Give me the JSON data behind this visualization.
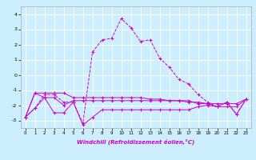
{
  "xlabel": "Windchill (Refroidissement éolien,°C)",
  "background_color": "#cceeff",
  "grid_color": "#ffffff",
  "line_color": "#cc00cc",
  "xlim": [
    -0.5,
    23.5
  ],
  "ylim": [
    -3.5,
    4.5
  ],
  "xticks": [
    0,
    1,
    2,
    3,
    4,
    5,
    6,
    7,
    8,
    9,
    10,
    11,
    12,
    13,
    14,
    15,
    16,
    17,
    18,
    19,
    20,
    21,
    22,
    23
  ],
  "yticks": [
    -3,
    -2,
    -1,
    0,
    1,
    2,
    3,
    4
  ],
  "lines": [
    {
      "x": [
        0,
        1,
        2,
        3,
        4,
        5,
        6,
        7,
        8,
        9,
        10,
        11,
        12,
        13,
        14,
        15,
        16,
        17,
        18,
        19,
        20,
        21,
        22,
        23
      ],
      "y": [
        -2.8,
        -2.2,
        -1.3,
        -1.3,
        -1.8,
        -1.8,
        -3.2,
        1.5,
        2.3,
        2.4,
        3.7,
        3.1,
        2.2,
        2.3,
        1.1,
        0.5,
        -0.3,
        -0.6,
        -1.3,
        -1.8,
        -2.1,
        -1.8,
        -2.6,
        -1.6
      ],
      "style": "--",
      "marker": "+"
    },
    {
      "x": [
        0,
        1,
        2,
        3,
        4,
        5,
        6,
        7,
        8,
        9,
        10,
        11,
        12,
        13,
        14,
        15,
        16,
        17,
        18,
        19,
        20,
        21,
        22,
        23
      ],
      "y": [
        -2.8,
        -1.2,
        -1.2,
        -1.2,
        -1.2,
        -1.5,
        -1.5,
        -1.5,
        -1.5,
        -1.5,
        -1.5,
        -1.5,
        -1.5,
        -1.6,
        -1.6,
        -1.7,
        -1.7,
        -1.8,
        -1.8,
        -1.9,
        -1.9,
        -1.9,
        -1.9,
        -1.6
      ],
      "style": "-",
      "marker": "+"
    },
    {
      "x": [
        0,
        1,
        2,
        3,
        4,
        5,
        6,
        7,
        8,
        9,
        10,
        11,
        12,
        13,
        14,
        15,
        16,
        17,
        18,
        19,
        20,
        21,
        22,
        23
      ],
      "y": [
        -2.8,
        -1.2,
        -1.5,
        -1.5,
        -2.0,
        -1.7,
        -1.7,
        -1.7,
        -1.7,
        -1.7,
        -1.7,
        -1.7,
        -1.7,
        -1.7,
        -1.7,
        -1.7,
        -1.7,
        -1.7,
        -1.9,
        -1.9,
        -2.1,
        -2.1,
        -2.1,
        -1.6
      ],
      "style": "-",
      "marker": "+"
    },
    {
      "x": [
        0,
        1,
        2,
        3,
        4,
        5,
        6,
        7,
        8,
        9,
        10,
        11,
        12,
        13,
        14,
        15,
        16,
        17,
        18,
        19,
        20,
        21,
        22,
        23
      ],
      "y": [
        -2.8,
        -2.2,
        -1.5,
        -2.5,
        -2.5,
        -1.8,
        -3.3,
        -2.8,
        -2.3,
        -2.3,
        -2.3,
        -2.3,
        -2.3,
        -2.3,
        -2.3,
        -2.3,
        -2.3,
        -2.3,
        -2.1,
        -2.0,
        -2.1,
        -1.8,
        -2.6,
        -1.6
      ],
      "style": "-",
      "marker": "+"
    }
  ]
}
